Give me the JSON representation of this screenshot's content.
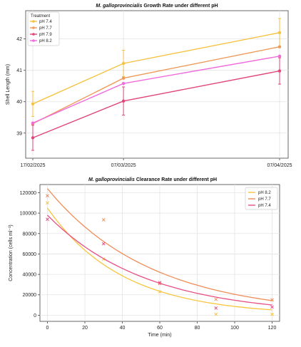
{
  "chart_data": [
    {
      "type": "line",
      "title_italic": "M. galloprovincialis",
      "title_rest": " Growth Rate under different pH",
      "xlabel": "",
      "ylabel": "Shell Length (mm)",
      "x": [
        "17/02/2025",
        "07/03/2025",
        "07/04/2025"
      ],
      "x_days": [
        0,
        18,
        49
      ],
      "ylim": [
        38.2,
        42.9
      ],
      "yticks": [
        39,
        40,
        41,
        42
      ],
      "grid": true,
      "legend_title": "Treatment",
      "legend_position": "top-left",
      "series": [
        {
          "name": "pH 7.4",
          "color": "#f5c242",
          "values": [
            39.93,
            41.22,
            42.2
          ],
          "errors": [
            0.4,
            0.42,
            0.45
          ]
        },
        {
          "name": "pH 7.7",
          "color": "#ef9a5a",
          "values": [
            39.3,
            40.75,
            41.75
          ],
          "errors": [
            0.0,
            0.0,
            0.0
          ]
        },
        {
          "name": "pH 7.9",
          "color": "#e0457b",
          "values": [
            38.85,
            40.02,
            40.98
          ],
          "errors": [
            0.4,
            0.45,
            0.42
          ]
        },
        {
          "name": "pH 8.2",
          "color": "#f06cdc",
          "values": [
            39.32,
            40.58,
            41.45
          ],
          "errors": [
            0.0,
            0.0,
            0.0
          ]
        }
      ]
    },
    {
      "type": "scatter",
      "title_italic": "M. galloprovincialis",
      "title_rest": " Clearance Rate under different pH",
      "xlabel": "Time (min)",
      "ylabel": "Concentration (cells ml⁻¹)",
      "xlim": [
        -4,
        124
      ],
      "ylim": [
        -6000,
        128000
      ],
      "xticks": [
        0,
        20,
        40,
        60,
        80,
        100,
        120
      ],
      "yticks": [
        0,
        20000,
        40000,
        60000,
        80000,
        100000,
        120000
      ],
      "grid": true,
      "legend_position": "top-right",
      "series": [
        {
          "name": "pH 8.2",
          "color": "#f7c53e",
          "points": [
            [
              0,
              110000
            ],
            [
              30,
              55000
            ],
            [
              60,
              23000
            ],
            [
              90,
              1000
            ],
            [
              120,
              800
            ]
          ],
          "fit": {
            "a": 105000,
            "k": 0.025
          }
        },
        {
          "name": "pH 7.7",
          "color": "#ef8c57",
          "points": [
            [
              0,
              117000
            ],
            [
              30,
              93500
            ],
            [
              60,
              31000
            ],
            [
              90,
              15500
            ],
            [
              120,
              15000
            ]
          ],
          "fit": {
            "a": 124000,
            "k": 0.018
          }
        },
        {
          "name": "pH 7.4",
          "color": "#e84e86",
          "points": [
            [
              0,
              94000
            ],
            [
              30,
              70000
            ],
            [
              60,
              32000
            ],
            [
              90,
              7000
            ],
            [
              120,
              8000
            ]
          ],
          "fit": {
            "a": 98000,
            "k": 0.019
          }
        }
      ]
    }
  ]
}
